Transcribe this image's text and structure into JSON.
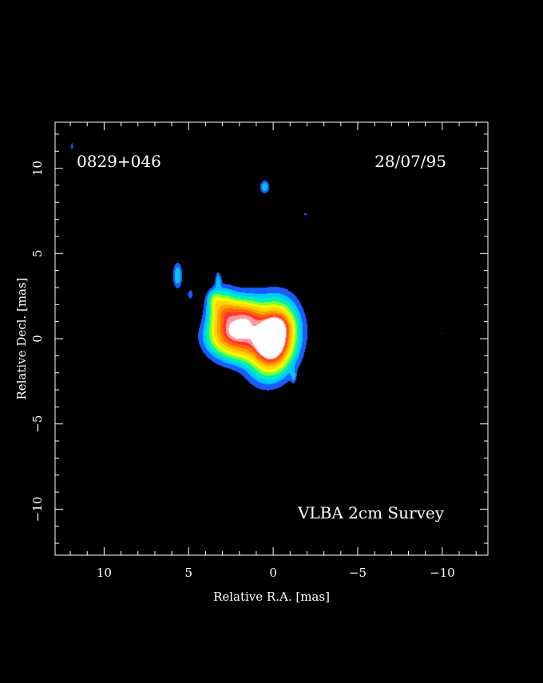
{
  "chart_data": {
    "type": "heatmap",
    "title": "",
    "xlabel": "Relative R.A. [mas]",
    "ylabel": "Relative Decl. [mas]",
    "xlim": [
      12.9,
      -12.7
    ],
    "ylim": [
      -12.7,
      12.7
    ],
    "x_ticks": [
      10,
      5,
      0,
      -5,
      -10
    ],
    "x_tick_labels": [
      "10",
      "5",
      "0",
      "−5",
      "−10"
    ],
    "y_ticks": [
      10,
      5,
      0,
      -5,
      -10
    ],
    "y_tick_labels": [
      "10",
      "5",
      "0",
      "−5",
      "−10"
    ],
    "grid": false,
    "background": "#000000",
    "annotations": {
      "source": "0829+046",
      "date": "28/07/95",
      "survey": "VLBA 2cm Survey"
    },
    "colorscale": [
      {
        "level": 0.05,
        "color": "#1a5cff"
      },
      {
        "level": 0.1,
        "color": "#00c8ff"
      },
      {
        "level": 0.16,
        "color": "#00f0b0"
      },
      {
        "level": 0.24,
        "color": "#7cff3a"
      },
      {
        "level": 0.32,
        "color": "#f0ff00"
      },
      {
        "level": 0.42,
        "color": "#ffd400"
      },
      {
        "level": 0.55,
        "color": "#ffa000"
      },
      {
        "level": 0.68,
        "color": "#ff6a00"
      },
      {
        "level": 0.8,
        "color": "#ff3030"
      },
      {
        "level": 0.88,
        "color": "#ff9a9a"
      },
      {
        "level": 0.95,
        "color": "#ffffff"
      }
    ],
    "emission": [
      {
        "x": 0.0,
        "y": 0.0,
        "sx": 0.6,
        "sy": 1.0,
        "theta": 10,
        "peak": 1.0
      },
      {
        "x": 0.1,
        "y": 0.0,
        "sx": 0.95,
        "sy": 1.35,
        "theta": 10,
        "peak": 0.5
      },
      {
        "x": -0.2,
        "y": -0.2,
        "sx": 0.6,
        "sy": 1.0,
        "theta": 0,
        "peak": 0.12
      },
      {
        "x": -0.4,
        "y": 0.8,
        "sx": 0.5,
        "sy": 0.4,
        "theta": 0,
        "peak": 0.15
      },
      {
        "x": 0.9,
        "y": -0.5,
        "sx": 0.7,
        "sy": 0.5,
        "theta": 0,
        "peak": 0.15
      },
      {
        "x": 1.5,
        "y": 0.5,
        "sx": 0.8,
        "sy": 0.7,
        "theta": 0,
        "peak": 0.28
      },
      {
        "x": 2.2,
        "y": 0.7,
        "sx": 0.8,
        "sy": 1.05,
        "theta": 30,
        "peak": 0.6
      },
      {
        "x": 3.0,
        "y": 1.6,
        "sx": 0.5,
        "sy": 0.75,
        "theta": 0,
        "peak": 0.42
      },
      {
        "x": 2.8,
        "y": 0.1,
        "sx": 0.8,
        "sy": 0.6,
        "theta": 0,
        "peak": 0.22
      },
      {
        "x": 1.8,
        "y": -0.5,
        "sx": 0.7,
        "sy": 0.6,
        "theta": 0,
        "peak": 0.16
      },
      {
        "x": 1.2,
        "y": 1.3,
        "sx": 0.5,
        "sy": 0.4,
        "theta": 0,
        "peak": 0.18
      },
      {
        "x": 2.0,
        "y": 1.6,
        "sx": 0.6,
        "sy": 0.4,
        "theta": 0,
        "peak": 0.18
      },
      {
        "x": 3.5,
        "y": 2.3,
        "sx": 0.25,
        "sy": 0.35,
        "theta": 0,
        "peak": 0.16
      },
      {
        "x": 3.25,
        "y": 3.4,
        "sx": 0.12,
        "sy": 0.35,
        "theta": 0,
        "peak": 0.12
      },
      {
        "x": 5.65,
        "y": 3.7,
        "sx": 0.18,
        "sy": 0.5,
        "theta": 0,
        "peak": 0.16
      },
      {
        "x": 4.9,
        "y": 2.6,
        "sx": 0.12,
        "sy": 0.2,
        "theta": 0,
        "peak": 0.1
      },
      {
        "x": 0.5,
        "y": 8.9,
        "sx": 0.18,
        "sy": 0.25,
        "theta": 0,
        "peak": 0.15
      },
      {
        "x": -1.9,
        "y": 7.3,
        "sx": 0.08,
        "sy": 0.08,
        "theta": 0,
        "peak": 0.07
      },
      {
        "x": -1.2,
        "y": -2.2,
        "sx": 0.1,
        "sy": 0.25,
        "theta": 0,
        "peak": 0.1
      },
      {
        "x": 11.9,
        "y": 11.3,
        "sx": 0.08,
        "sy": 0.2,
        "theta": 0,
        "peak": 0.07
      },
      {
        "x": -10.0,
        "y": 0.3,
        "sx": 0.07,
        "sy": 0.07,
        "theta": 0,
        "peak": 0.055
      }
    ]
  }
}
